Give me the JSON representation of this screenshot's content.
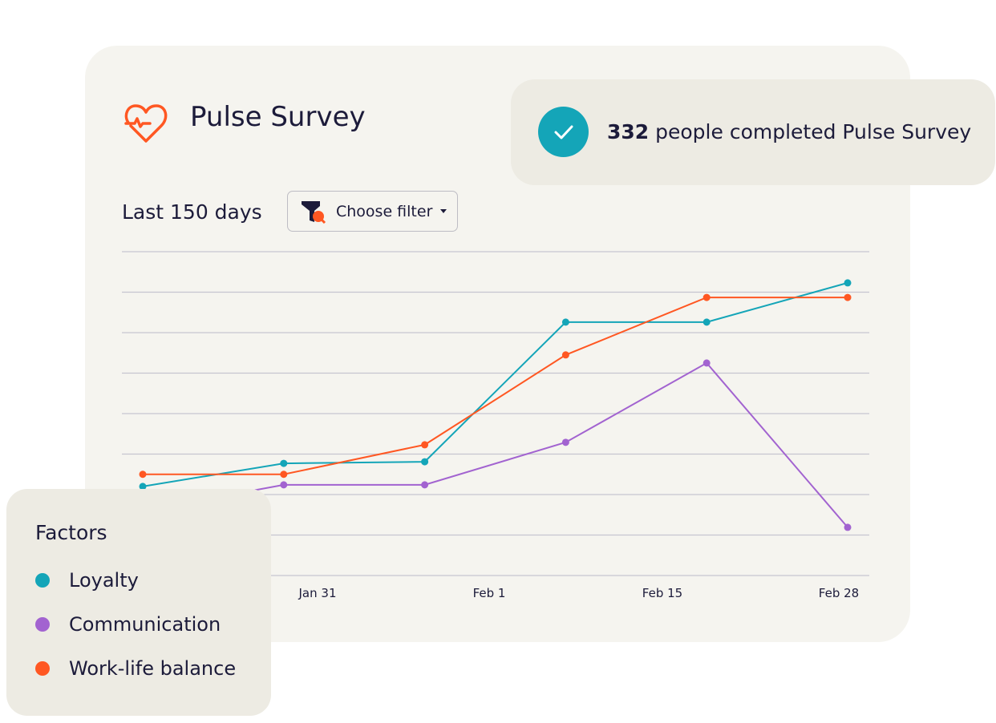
{
  "header": {
    "title": "Pulse Survey",
    "icon": "heart-pulse-icon",
    "range_label": "Last 150 days",
    "filter_label": "Choose filter"
  },
  "badge": {
    "count": "332",
    "text": "people completed Pulse Survey"
  },
  "legend": {
    "title": "Factors",
    "items": [
      {
        "label": "Loyalty",
        "color": "#14a5b8"
      },
      {
        "label": "Communication",
        "color": "#a263d0"
      },
      {
        "label": "Work-life balance",
        "color": "#ff5722"
      }
    ]
  },
  "chart_data": {
    "type": "line",
    "title": "",
    "xlabel": "",
    "ylabel": "",
    "x": [
      0,
      1,
      2,
      3,
      4,
      5
    ],
    "x_tick_labels": [
      "Jan 31",
      "Feb 1",
      "Feb 15",
      "Feb 28"
    ],
    "ylim": [
      0,
      8
    ],
    "grid": true,
    "series": [
      {
        "name": "Loyalty",
        "color": "#14a5b8",
        "values": [
          2.2,
          2.77,
          2.81,
          6.26,
          6.26,
          7.23
        ]
      },
      {
        "name": "Communication",
        "color": "#a263d0",
        "values": [
          1.6,
          2.24,
          2.24,
          3.29,
          5.25,
          1.19
        ]
      },
      {
        "name": "Work-life balance",
        "color": "#ff5722",
        "values": [
          2.5,
          2.5,
          3.23,
          5.45,
          6.87,
          6.87
        ]
      }
    ]
  }
}
